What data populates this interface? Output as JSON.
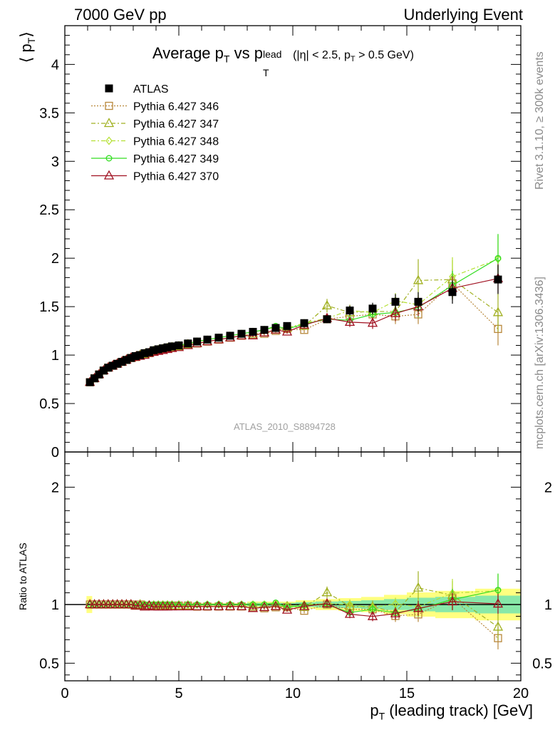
{
  "header": {
    "left": "7000 GeV pp",
    "right": "Underlying Event"
  },
  "side_labels": {
    "rivet": "Rivet 3.1.10, ≥ 300k events",
    "mcplots": "mcplots.cern.ch [arXiv:1306.3436]"
  },
  "chart_data": {
    "type": "scatter",
    "title": "Average pT vs pT^lead (|η| < 2.5, pT > 0.5 GeV)",
    "title_parts": {
      "main": "Average p",
      "sub_t": "T",
      "vs": "vs p",
      "sup_lead": "lead",
      "sub_t2": "T",
      "cut_a": "(|η| < 2.5, p",
      "cut_sub": "T",
      "cut_b": "> 0.5 GeV)"
    },
    "watermark": "ATLAS_2010_S8894728",
    "xlabel": "p_T (leading track) [GeV]",
    "xlabel_parts": {
      "p": "p",
      "sub": "T",
      "rest": "(leading track) [GeV]"
    },
    "ylabel": "⟨ p_T ⟩",
    "ylabel_parts": {
      "open": "⟨ p",
      "sub": "T",
      "close": "⟩"
    },
    "ratio_ylabel": "Ratio to ATLAS",
    "xlim": [
      0,
      20
    ],
    "ylim_main": [
      0,
      4.4
    ],
    "ylim_ratio": [
      0.35,
      2.3
    ],
    "x_ticks": [
      "0",
      "5",
      "10",
      "15",
      "20"
    ],
    "y_ticks_main": [
      "0",
      "0.5",
      "1",
      "1.5",
      "2",
      "2.5",
      "3",
      "3.5",
      "4"
    ],
    "y_ticks_ratio": [
      "0.5",
      "1",
      "2"
    ],
    "legend_position": "top-left",
    "x": [
      1.1,
      1.3,
      1.5,
      1.7,
      1.9,
      2.1,
      2.3,
      2.5,
      2.7,
      2.9,
      3.1,
      3.3,
      3.5,
      3.7,
      3.9,
      4.1,
      4.3,
      4.5,
      4.7,
      5.0,
      5.4,
      5.8,
      6.25,
      6.75,
      7.25,
      7.75,
      8.25,
      8.75,
      9.25,
      9.75,
      10.5,
      11.5,
      12.5,
      13.5,
      14.5,
      15.5,
      17.0,
      19.0
    ],
    "series": [
      {
        "name": "ATLAS",
        "color": "#000000",
        "marker": "filled-square",
        "values": [
          0.72,
          0.76,
          0.8,
          0.84,
          0.87,
          0.89,
          0.91,
          0.93,
          0.95,
          0.97,
          0.99,
          1.0,
          1.02,
          1.03,
          1.05,
          1.06,
          1.07,
          1.08,
          1.09,
          1.1,
          1.12,
          1.14,
          1.16,
          1.18,
          1.2,
          1.22,
          1.24,
          1.26,
          1.28,
          1.3,
          1.33,
          1.37,
          1.46,
          1.48,
          1.55,
          1.55,
          1.65,
          1.78
        ],
        "errors": [
          0.01,
          0.01,
          0.01,
          0.01,
          0.01,
          0.01,
          0.01,
          0.01,
          0.01,
          0.01,
          0.01,
          0.01,
          0.01,
          0.01,
          0.01,
          0.01,
          0.01,
          0.01,
          0.01,
          0.01,
          0.01,
          0.01,
          0.01,
          0.01,
          0.01,
          0.01,
          0.02,
          0.02,
          0.02,
          0.02,
          0.03,
          0.04,
          0.05,
          0.06,
          0.08,
          0.1,
          0.12,
          0.15
        ]
      },
      {
        "name": "Pythia 6.427 346",
        "color": "#b8873a",
        "marker": "open-square",
        "line": "dotted",
        "values": [
          0.72,
          0.76,
          0.8,
          0.84,
          0.87,
          0.89,
          0.91,
          0.93,
          0.95,
          0.97,
          0.98,
          1.0,
          1.01,
          1.02,
          1.04,
          1.05,
          1.06,
          1.07,
          1.08,
          1.09,
          1.11,
          1.12,
          1.14,
          1.16,
          1.18,
          1.2,
          1.21,
          1.22,
          1.25,
          1.27,
          1.26,
          1.37,
          1.4,
          1.42,
          1.4,
          1.42,
          1.74,
          1.27
        ],
        "errors": [
          0.005,
          0.005,
          0.005,
          0.005,
          0.005,
          0.005,
          0.005,
          0.005,
          0.005,
          0.005,
          0.005,
          0.005,
          0.005,
          0.005,
          0.005,
          0.005,
          0.005,
          0.005,
          0.005,
          0.006,
          0.006,
          0.007,
          0.008,
          0.01,
          0.01,
          0.012,
          0.014,
          0.016,
          0.018,
          0.02,
          0.03,
          0.04,
          0.05,
          0.06,
          0.08,
          0.1,
          0.15,
          0.17
        ]
      },
      {
        "name": "Pythia 6.427 347",
        "color": "#a0b020",
        "marker": "open-triangle",
        "line": "dashdot",
        "values": [
          0.72,
          0.76,
          0.8,
          0.84,
          0.87,
          0.89,
          0.91,
          0.93,
          0.95,
          0.97,
          0.98,
          1.0,
          1.01,
          1.02,
          1.04,
          1.05,
          1.06,
          1.07,
          1.08,
          1.09,
          1.11,
          1.12,
          1.14,
          1.16,
          1.18,
          1.2,
          1.22,
          1.23,
          1.26,
          1.28,
          1.3,
          1.51,
          1.44,
          1.45,
          1.45,
          1.77,
          1.78,
          1.44
        ],
        "errors": [
          0.005,
          0.005,
          0.005,
          0.005,
          0.005,
          0.005,
          0.005,
          0.005,
          0.005,
          0.005,
          0.005,
          0.005,
          0.005,
          0.005,
          0.005,
          0.005,
          0.005,
          0.005,
          0.005,
          0.006,
          0.006,
          0.007,
          0.008,
          0.01,
          0.01,
          0.012,
          0.014,
          0.016,
          0.018,
          0.02,
          0.03,
          0.07,
          0.08,
          0.08,
          0.1,
          0.22,
          0.2,
          0.2
        ]
      },
      {
        "name": "Pythia 6.427 348",
        "color": "#b4e032",
        "marker": "open-diamond",
        "line": "dashdot",
        "values": [
          0.72,
          0.76,
          0.8,
          0.84,
          0.87,
          0.89,
          0.91,
          0.93,
          0.95,
          0.97,
          0.99,
          1.0,
          1.02,
          1.03,
          1.05,
          1.06,
          1.07,
          1.08,
          1.09,
          1.1,
          1.12,
          1.14,
          1.16,
          1.18,
          1.2,
          1.22,
          1.24,
          1.26,
          1.29,
          1.28,
          1.33,
          1.38,
          1.46,
          1.44,
          1.56,
          1.52,
          1.81,
          1.99
        ],
        "errors": [
          0.005,
          0.005,
          0.005,
          0.005,
          0.005,
          0.005,
          0.005,
          0.005,
          0.005,
          0.005,
          0.005,
          0.005,
          0.005,
          0.005,
          0.005,
          0.005,
          0.005,
          0.005,
          0.005,
          0.006,
          0.006,
          0.007,
          0.008,
          0.01,
          0.01,
          0.012,
          0.014,
          0.016,
          0.018,
          0.02,
          0.03,
          0.04,
          0.05,
          0.06,
          0.08,
          0.1,
          0.2,
          0.25
        ]
      },
      {
        "name": "Pythia 6.427 349",
        "color": "#33dd22",
        "marker": "open-circle",
        "line": "solid",
        "values": [
          0.72,
          0.76,
          0.8,
          0.84,
          0.87,
          0.89,
          0.91,
          0.93,
          0.95,
          0.97,
          0.99,
          1.0,
          1.02,
          1.03,
          1.05,
          1.06,
          1.07,
          1.08,
          1.09,
          1.1,
          1.12,
          1.14,
          1.16,
          1.18,
          1.2,
          1.22,
          1.24,
          1.26,
          1.3,
          1.27,
          1.32,
          1.37,
          1.36,
          1.42,
          1.44,
          1.49,
          1.72,
          2.0
        ],
        "errors": [
          0.005,
          0.005,
          0.005,
          0.005,
          0.005,
          0.005,
          0.005,
          0.005,
          0.005,
          0.005,
          0.005,
          0.005,
          0.005,
          0.005,
          0.005,
          0.005,
          0.005,
          0.005,
          0.005,
          0.006,
          0.006,
          0.007,
          0.008,
          0.01,
          0.01,
          0.012,
          0.014,
          0.016,
          0.018,
          0.02,
          0.03,
          0.04,
          0.05,
          0.06,
          0.08,
          0.1,
          0.15,
          0.25
        ]
      },
      {
        "name": "Pythia 6.427 370",
        "color": "#a01020",
        "marker": "open-triangle",
        "line": "solid",
        "values": [
          0.72,
          0.76,
          0.8,
          0.84,
          0.87,
          0.89,
          0.91,
          0.93,
          0.95,
          0.97,
          0.98,
          0.99,
          1.0,
          1.02,
          1.03,
          1.04,
          1.05,
          1.06,
          1.07,
          1.08,
          1.1,
          1.12,
          1.14,
          1.16,
          1.18,
          1.2,
          1.2,
          1.23,
          1.26,
          1.24,
          1.31,
          1.38,
          1.34,
          1.33,
          1.43,
          1.5,
          1.69,
          1.79
        ],
        "errors": [
          0.005,
          0.005,
          0.005,
          0.005,
          0.005,
          0.005,
          0.005,
          0.005,
          0.005,
          0.005,
          0.005,
          0.005,
          0.005,
          0.005,
          0.005,
          0.005,
          0.005,
          0.005,
          0.005,
          0.006,
          0.006,
          0.007,
          0.008,
          0.01,
          0.01,
          0.012,
          0.014,
          0.016,
          0.018,
          0.02,
          0.03,
          0.04,
          0.05,
          0.06,
          0.08,
          0.1,
          0.12,
          0.15
        ]
      }
    ],
    "ratio_band_colors": {
      "inner": "#88e8a8",
      "outer": "#ffff80"
    }
  }
}
